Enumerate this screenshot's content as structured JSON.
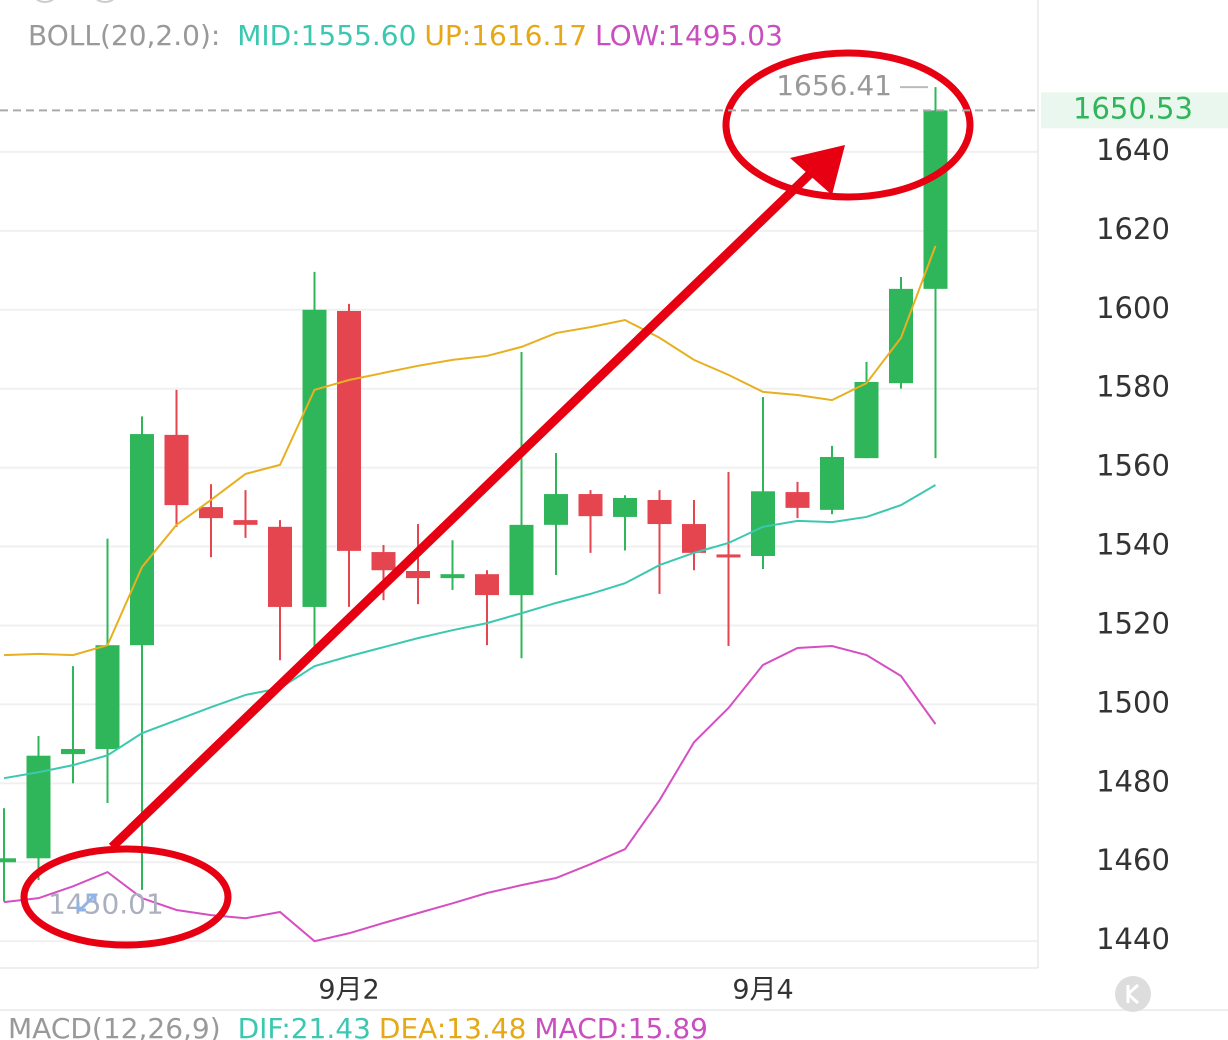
{
  "chart_data": {
    "type": "candlestick",
    "categories": [
      null,
      null,
      null,
      null,
      null,
      null,
      null,
      null,
      null,
      null,
      "9月2",
      null,
      null,
      null,
      null,
      null,
      null,
      null,
      null,
      null,
      null,
      null,
      "9月4",
      null,
      null,
      null,
      null,
      null
    ],
    "open": [
      1460,
      1461,
      1487.4,
      1488.7,
      1515,
      1568.3,
      1550,
      1546.7,
      1545,
      1524.7,
      1599.7,
      1538.6,
      1533.8,
      1532,
      1533,
      1527.7,
      1545.5,
      1553.3,
      1547.5,
      1551.8,
      1545.7,
      1538,
      1537.6,
      1553.8,
      1549.3,
      1562.4,
      1581.4,
      1605.3
    ],
    "high": [
      1473.7,
      1492,
      1509.7,
      1542,
      1573,
      1579.7,
      1555.8,
      1554.3,
      1546.7,
      1609.6,
      1601.5,
      1540.4,
      1545.7,
      1541.6,
      1534,
      1589.3,
      1563.7,
      1554.3,
      1553,
      1554.3,
      1551.8,
      1558.9,
      1577.9,
      1556.4,
      1565.5,
      1586.8,
      1608.3,
      1656.41
    ],
    "low": [
      1450.01,
      1455.5,
      1480,
      1475,
      1453,
      1545,
      1537.3,
      1542.2,
      1511.2,
      1514.3,
      1524.7,
      1526.4,
      1525.4,
      1529,
      1515,
      1511.7,
      1532.8,
      1538.4,
      1539,
      1528,
      1534,
      1514.8,
      1534.3,
      1547.2,
      1548.2,
      1562.4,
      1580,
      1562.4
    ],
    "close": [
      1461,
      1487,
      1488.7,
      1515,
      1568.5,
      1550.5,
      1547.2,
      1545.5,
      1524.7,
      1600,
      1538.9,
      1534,
      1532,
      1533,
      1527.7,
      1545.5,
      1553.3,
      1547.7,
      1552.3,
      1545.7,
      1538.4,
      1537.8,
      1554,
      1549.8,
      1562.7,
      1581.7,
      1605.3,
      1650.53
    ],
    "up_color": "#2fb55a",
    "down_color": "#e5454f",
    "series": [
      {
        "color": "#e8b020",
        "values": [
          1512.5,
          1512.8,
          1512.5,
          1515,
          1534.8,
          1545.5,
          1551.8,
          1558.4,
          1560.7,
          1579.7,
          1582.2,
          1584,
          1585.8,
          1587.3,
          1588.3,
          1590.6,
          1594.1,
          1595.6,
          1597.4,
          1592.9,
          1587.3,
          1583.5,
          1579.2,
          1578.4,
          1577.1,
          1581.4,
          1592.9,
          1616.2
        ]
      },
      {
        "color": "#3cc8b0",
        "values": [
          1481.3,
          1482.8,
          1484.6,
          1487.1,
          1492.7,
          1496,
          1499.3,
          1502.4,
          1504.1,
          1509.7,
          1512.2,
          1514.5,
          1516.8,
          1518.8,
          1520.6,
          1523.1,
          1525.7,
          1528,
          1530.7,
          1535.3,
          1538.4,
          1540.9,
          1545,
          1546.5,
          1546.2,
          1547.5,
          1550.5,
          1555.6
        ]
      },
      {
        "color": "#d64fc2",
        "values": [
          1449.9,
          1450.9,
          1453.9,
          1457.5,
          1450.9,
          1447.9,
          1446.6,
          1445.8,
          1447.4,
          1440,
          1442,
          1444.6,
          1447.1,
          1449.6,
          1452.2,
          1454.2,
          1456,
          1459.5,
          1463.3,
          1475.7,
          1490.4,
          1499.1,
          1510,
          1514.3,
          1514.8,
          1512.5,
          1507.2,
          1495
        ]
      }
    ],
    "boll_legend": {
      "title": "BOLL(20,2.0):",
      "items": [
        {
          "text": "MID:1555.60",
          "color": "#3cc8b0"
        },
        {
          "text": "UP:1616.17",
          "color": "#e6a817"
        },
        {
          "text": "LOW:1495.03",
          "color": "#c94fc0"
        }
      ]
    },
    "macd_legend": {
      "title": "MACD(12,26,9)",
      "items": [
        {
          "text": "DIF:21.43",
          "color": "#3cc8b0"
        },
        {
          "text": "DEA:13.48",
          "color": "#e6a817"
        },
        {
          "text": "MACD:15.89",
          "color": "#c94fc0"
        }
      ]
    },
    "ylim": [
      1433.2,
      1678.5
    ],
    "yticks": [
      1440,
      1460,
      1480,
      1500,
      1520,
      1540,
      1560,
      1580,
      1600,
      1620,
      1640
    ],
    "grid": true
  }
}
